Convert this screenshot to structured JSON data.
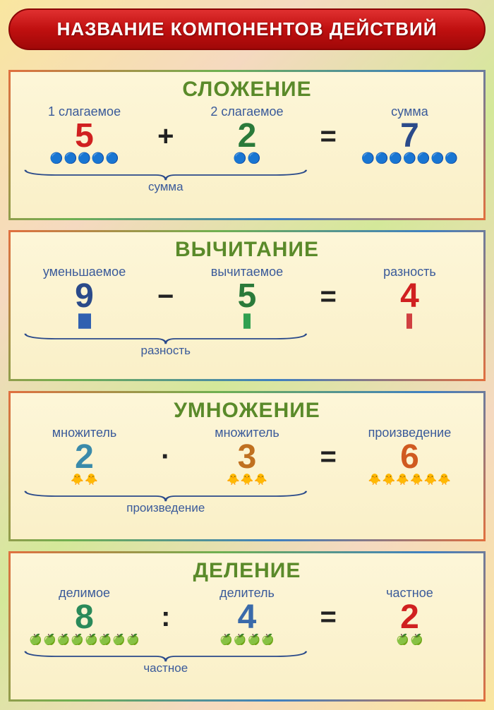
{
  "title": "НАЗВАНИЕ КОМПОНЕНТОВ ДЕЙСТВИЙ",
  "colors": {
    "title_bg": "#c01010",
    "title_text": "#ffffff",
    "panel_bg": "#fdf6d8",
    "label_color": "#3a5a9a",
    "op_color": "#222222",
    "brace_color": "#2a4a8a"
  },
  "panels": [
    {
      "id": "addition",
      "title": "СЛОЖЕНИЕ",
      "title_color": "#5a8a2a",
      "operator": "+",
      "equals": "=",
      "operand1": {
        "label": "1 слагаемое",
        "value": "5",
        "color": "#d02020",
        "icon": "ball",
        "count": 5
      },
      "operand2": {
        "label": "2 слагаемое",
        "value": "2",
        "color": "#2a7a3a",
        "icon": "ball",
        "count": 2
      },
      "result": {
        "label": "сумма",
        "value": "7",
        "color": "#2a4a8a",
        "icon": "ball",
        "count": 7
      },
      "brace_label": "сумма"
    },
    {
      "id": "subtraction",
      "title": "ВЫЧИТАНИЕ",
      "title_color": "#5a8a2a",
      "operator": "−",
      "equals": "=",
      "operand1": {
        "label": "уменьшаемое",
        "value": "9",
        "color": "#2a4a8a",
        "icon": "tally",
        "count": 9,
        "tally_color": "#3060b0"
      },
      "operand2": {
        "label": "вычитаемое",
        "value": "5",
        "color": "#2a7a3a",
        "icon": "tally",
        "count": 5,
        "tally_color": "#30a050"
      },
      "result": {
        "label": "разность",
        "value": "4",
        "color": "#d02020",
        "icon": "tally",
        "count": 4,
        "tally_color": "#d04040"
      },
      "brace_label": "разность"
    },
    {
      "id": "multiplication",
      "title": "УМНОЖЕНИЕ",
      "title_color": "#5a8a2a",
      "operator": "·",
      "equals": "=",
      "operand1": {
        "label": "множитель",
        "value": "2",
        "color": "#3a8aaa",
        "icon": "duck",
        "count": 2
      },
      "operand2": {
        "label": "множитель",
        "value": "3",
        "color": "#c07020",
        "icon": "duck",
        "count": 3
      },
      "result": {
        "label": "произведение",
        "value": "6",
        "color": "#d05a20",
        "icon": "duck",
        "count": 6
      },
      "brace_label": "произведение"
    },
    {
      "id": "division",
      "title": "ДЕЛЕНИЕ",
      "title_color": "#5a8a2a",
      "operator": ":",
      "equals": "=",
      "operand1": {
        "label": "делимое",
        "value": "8",
        "color": "#2a8a5a",
        "icon": "apple",
        "count": 8
      },
      "operand2": {
        "label": "делитель",
        "value": "4",
        "color": "#3a6aaa",
        "icon": "apple",
        "count": 4
      },
      "result": {
        "label": "частное",
        "value": "2",
        "color": "#d02020",
        "icon": "apple",
        "count": 2
      },
      "brace_label": "частное"
    }
  ],
  "icon_glyphs": {
    "ball": "🔵",
    "duck": "🐥",
    "apple": "🍏"
  }
}
